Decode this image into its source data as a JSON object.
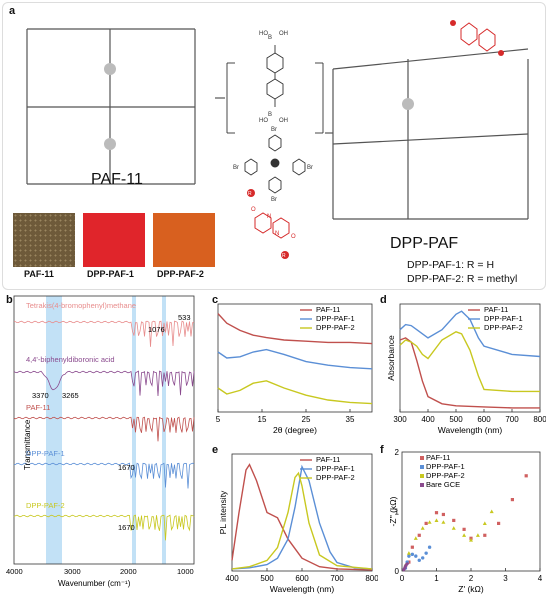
{
  "panel_a": {
    "label": "a",
    "paf11_title": "PAF-11",
    "dpp_title": "DPP-PAF",
    "r_note_1": "DPP-PAF-1: R = H",
    "r_note_2": "DPP-PAF-2: R = methyl",
    "swatches": [
      {
        "label": "PAF-11",
        "color": "#6e5a3a"
      },
      {
        "label": "DPP-PAF-1",
        "color": "#e0252b"
      },
      {
        "label": "DPP-PAF-2",
        "color": "#d8601f"
      }
    ],
    "monomer_oh": [
      "OH",
      "HO",
      "B",
      "OH",
      "HO",
      "B"
    ],
    "monomer_br": "Br",
    "r_symbol": "R",
    "atom_o": "O",
    "atom_n": "N"
  },
  "panel_b": {
    "label": "b",
    "ylabel": "Transmittance",
    "xlabel": "Wavenumber (cm⁻¹)",
    "xticks": [
      "4000",
      "3000",
      "2000",
      "1000"
    ],
    "traces": [
      {
        "name": "Tetrakis(4-bromophenyl)methane",
        "color": "#e88d8d"
      },
      {
        "name": "4,4'-biphenyldiboronic acid",
        "color": "#8a4a8e"
      },
      {
        "name": "PAF-11",
        "color": "#c0504d"
      },
      {
        "name": "DPP-PAF-1",
        "color": "#5b8fd6"
      },
      {
        "name": "DPP-PAF-2",
        "color": "#c8c820"
      }
    ],
    "annotations": [
      "1076",
      "533",
      "3370",
      "3265",
      "1670",
      "1670"
    ]
  },
  "chart_data": [
    {
      "type": "line",
      "panel": "c",
      "xlabel": "2θ (degree)",
      "xticks": [
        "5",
        "15",
        "25",
        "35"
      ],
      "xlim": [
        5,
        40
      ],
      "series": [
        {
          "name": "PAF-11",
          "color": "#c0504d",
          "x": [
            5,
            7,
            10,
            13,
            16,
            20,
            25,
            30,
            35,
            40
          ],
          "y": [
            0.92,
            0.84,
            0.78,
            0.74,
            0.72,
            0.7,
            0.69,
            0.68,
            0.68,
            0.67
          ]
        },
        {
          "name": "DPP-PAF-1",
          "color": "#5b8fd6",
          "x": [
            5,
            7,
            10,
            13,
            16,
            20,
            25,
            30,
            35,
            40
          ],
          "y": [
            0.6,
            0.55,
            0.56,
            0.6,
            0.62,
            0.58,
            0.52,
            0.49,
            0.47,
            0.46
          ]
        },
        {
          "name": "DPP-PAF-2",
          "color": "#c8c820",
          "x": [
            5,
            7,
            10,
            13,
            16,
            20,
            25,
            30,
            35,
            40
          ],
          "y": [
            0.3,
            0.25,
            0.28,
            0.34,
            0.36,
            0.3,
            0.24,
            0.2,
            0.18,
            0.17
          ]
        }
      ]
    },
    {
      "type": "line",
      "panel": "d",
      "xlabel": "Wavelength (nm)",
      "ylabel": "Absorbance",
      "xticks": [
        "300",
        "400",
        "500",
        "600",
        "700",
        "800"
      ],
      "xlim": [
        300,
        800
      ],
      "series": [
        {
          "name": "PAF-11",
          "color": "#c0504d",
          "x": [
            300,
            320,
            340,
            360,
            380,
            400,
            450,
            500,
            600,
            700,
            800
          ],
          "y": [
            0.7,
            0.72,
            0.68,
            0.5,
            0.3,
            0.15,
            0.08,
            0.06,
            0.05,
            0.04,
            0.04
          ]
        },
        {
          "name": "DPP-PAF-1",
          "color": "#5b8fd6",
          "x": [
            300,
            320,
            340,
            360,
            380,
            400,
            450,
            500,
            520,
            550,
            580,
            600,
            700,
            800
          ],
          "y": [
            0.8,
            0.85,
            0.84,
            0.8,
            0.76,
            0.72,
            0.8,
            0.95,
            0.98,
            0.9,
            0.72,
            0.64,
            0.56,
            0.54
          ]
        },
        {
          "name": "DPP-PAF-2",
          "color": "#c8c820",
          "x": [
            300,
            320,
            340,
            360,
            380,
            400,
            450,
            500,
            520,
            550,
            580,
            600,
            700,
            800
          ],
          "y": [
            0.65,
            0.7,
            0.68,
            0.64,
            0.56,
            0.52,
            0.7,
            0.78,
            0.76,
            0.6,
            0.35,
            0.22,
            0.2,
            0.2
          ]
        }
      ]
    },
    {
      "type": "line",
      "panel": "e",
      "xlabel": "Wavelength (nm)",
      "ylabel": "PL intensity",
      "xticks": [
        "400",
        "500",
        "600",
        "700",
        "800"
      ],
      "xlim": [
        400,
        800
      ],
      "series": [
        {
          "name": "PAF-11",
          "color": "#c0504d",
          "x": [
            400,
            420,
            440,
            450,
            470,
            500,
            530,
            560,
            600,
            650,
            700,
            800
          ],
          "y": [
            0.1,
            0.55,
            0.95,
            1.0,
            0.85,
            0.55,
            0.5,
            0.3,
            0.12,
            0.04,
            0.02,
            0.01
          ]
        },
        {
          "name": "DPP-PAF-1",
          "color": "#5b8fd6",
          "x": [
            400,
            450,
            500,
            530,
            560,
            580,
            600,
            620,
            650,
            680,
            700,
            750,
            800
          ],
          "y": [
            0.02,
            0.03,
            0.06,
            0.12,
            0.3,
            0.6,
            0.98,
            0.85,
            0.45,
            0.18,
            0.08,
            0.03,
            0.02
          ]
        },
        {
          "name": "DPP-PAF-2",
          "color": "#c8c820",
          "x": [
            400,
            450,
            500,
            530,
            560,
            580,
            590,
            600,
            620,
            650,
            700,
            800
          ],
          "y": [
            0.02,
            0.04,
            0.1,
            0.22,
            0.55,
            0.88,
            0.92,
            0.8,
            0.45,
            0.15,
            0.05,
            0.02
          ]
        }
      ]
    },
    {
      "type": "scatter",
      "panel": "f",
      "xlabel": "Z' (kΩ)",
      "ylabel": "-Z'' (kΩ)",
      "xticks": [
        "0",
        "1",
        "2",
        "3",
        "4"
      ],
      "yticks": [
        "0",
        "1",
        "2"
      ],
      "xlim": [
        0,
        4
      ],
      "ylim": [
        0,
        2
      ],
      "series": [
        {
          "name": "PAF-11",
          "color": "#d06060",
          "marker": "square",
          "x": [
            0.2,
            0.3,
            0.5,
            0.7,
            1.0,
            1.2,
            1.5,
            1.8,
            2.0,
            2.4,
            2.8,
            3.2,
            3.6
          ],
          "y": [
            0.15,
            0.4,
            0.6,
            0.8,
            0.98,
            0.95,
            0.85,
            0.7,
            0.55,
            0.6,
            0.8,
            1.2,
            1.6
          ]
        },
        {
          "name": "DPP-PAF-1",
          "color": "#5b8fd6",
          "marker": "circle",
          "x": [
            0.1,
            0.15,
            0.2,
            0.3,
            0.4,
            0.5,
            0.6,
            0.7,
            0.8
          ],
          "y": [
            0.05,
            0.15,
            0.25,
            0.28,
            0.25,
            0.18,
            0.22,
            0.3,
            0.4
          ]
        },
        {
          "name": "DPP-PAF-2",
          "color": "#c8c820",
          "marker": "triangle",
          "x": [
            0.1,
            0.2,
            0.4,
            0.6,
            0.8,
            1.0,
            1.2,
            1.5,
            1.8,
            2.0,
            2.2,
            2.4,
            2.6
          ],
          "y": [
            0.1,
            0.3,
            0.55,
            0.72,
            0.82,
            0.85,
            0.82,
            0.72,
            0.6,
            0.52,
            0.6,
            0.8,
            1.0
          ]
        },
        {
          "name": "Bare GCE",
          "color": "#8a4a8e",
          "marker": "diamond",
          "x": [
            0.05,
            0.08,
            0.1,
            0.12,
            0.15
          ],
          "y": [
            0.02,
            0.05,
            0.08,
            0.1,
            0.12
          ]
        }
      ]
    }
  ]
}
